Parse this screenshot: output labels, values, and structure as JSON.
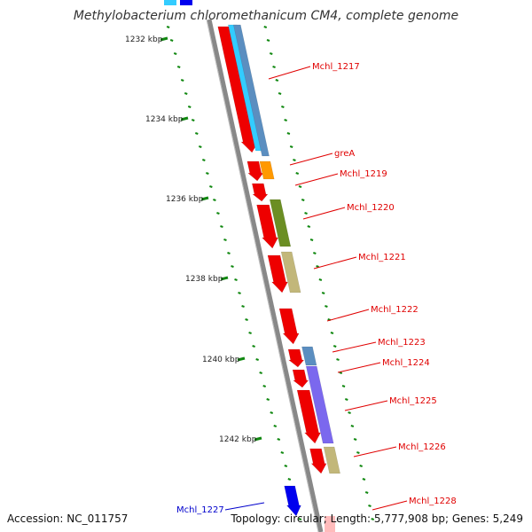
{
  "title": "Methylobacterium chloromethanicum CM4, complete genome",
  "footer": {
    "accession_label": "Accession:",
    "accession": "NC_011757",
    "topology": "Topology: circular",
    "length": "Length: 5,777,908 bp",
    "genes": "Genes: 5,249"
  },
  "scale_labels": [
    "1232 kbp",
    "1234 kbp",
    "1236 kbp",
    "1238 kbp",
    "1240 kbp",
    "1242 kbp"
  ],
  "genes": [
    {
      "name": "Mchl_1217",
      "color": "#e00000"
    },
    {
      "name": "greA",
      "color": "#e00000"
    },
    {
      "name": "Mchl_1219",
      "color": "#e00000"
    },
    {
      "name": "Mchl_1220",
      "color": "#e00000"
    },
    {
      "name": "Mchl_1221",
      "color": "#e00000"
    },
    {
      "name": "Mchl_1222",
      "color": "#e00000"
    },
    {
      "name": "Mchl_1223",
      "color": "#e00000"
    },
    {
      "name": "Mchl_1224",
      "color": "#e00000"
    },
    {
      "name": "Mchl_1225",
      "color": "#e00000"
    },
    {
      "name": "Mchl_1226",
      "color": "#e00000"
    },
    {
      "name": "Mchl_1227",
      "color": "#0000cc"
    },
    {
      "name": "Mchl_1228",
      "color": "#e00000"
    }
  ],
  "colors": {
    "backbone": "#888888",
    "cds": "#ee0000",
    "tick": "#118811",
    "cyan": "#33ccff",
    "steel": "#5b8ec0",
    "orange": "#ff9900",
    "olive": "#6b8e23",
    "khaki": "#c2b77a",
    "slate": "#7b68ee",
    "blue": "#0000ee"
  }
}
